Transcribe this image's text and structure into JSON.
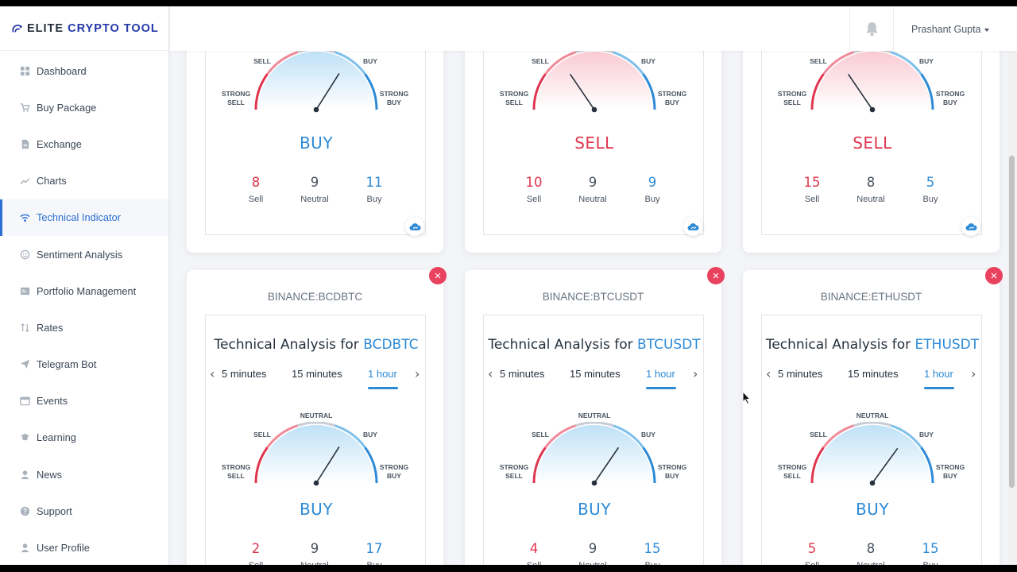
{
  "brand": {
    "prefix": "ELITE",
    "accent": "CRYPTO TOOL"
  },
  "sidebar": {
    "items": [
      {
        "label": "Dashboard",
        "icon": "dashboard-icon"
      },
      {
        "label": "Buy Package",
        "icon": "cart-icon"
      },
      {
        "label": "Exchange",
        "icon": "document-icon"
      },
      {
        "label": "Charts",
        "icon": "chart-line-icon"
      },
      {
        "label": "Technical Indicator",
        "icon": "wifi-icon",
        "active": true
      },
      {
        "label": "Sentiment Analysis",
        "icon": "smiley-icon"
      },
      {
        "label": "Portfolio Management",
        "icon": "portfolio-icon"
      },
      {
        "label": "Rates",
        "icon": "sort-arrows-icon"
      },
      {
        "label": "Telegram Bot",
        "icon": "paper-plane-icon"
      },
      {
        "label": "Events",
        "icon": "calendar-icon"
      },
      {
        "label": "Learning",
        "icon": "graduation-cap-icon"
      },
      {
        "label": "News",
        "icon": "user-icon"
      },
      {
        "label": "Support",
        "icon": "question-circle-icon"
      },
      {
        "label": "User Profile",
        "icon": "user-icon"
      }
    ]
  },
  "header": {
    "user_name": "Prashant Gupta"
  },
  "gauge_labels": {
    "strong_sell_1": "STRONG",
    "strong_sell_2": "SELL",
    "sell": "SELL",
    "neutral": "NEUTRAL",
    "buy": "BUY",
    "strong_buy_1": "STRONG",
    "strong_buy_2": "BUY"
  },
  "count_labels": {
    "sell": "Sell",
    "neutral": "Neutral",
    "buy": "Buy"
  },
  "tabs": {
    "t1": "5 minutes",
    "t2": "15 minutes",
    "t3": "1 hour"
  },
  "title_prefix": "Technical Analysis for",
  "top_cards": [
    {
      "verdict": "BUY",
      "sell": "8",
      "neutral": "9",
      "buy": "11",
      "needle_value": 0.68
    },
    {
      "verdict": "SELL",
      "sell": "10",
      "neutral": "9",
      "buy": "9",
      "needle_value": 0.31
    },
    {
      "verdict": "SELL",
      "sell": "15",
      "neutral": "8",
      "buy": "5",
      "needle_value": 0.31
    }
  ],
  "bottom_cards": [
    {
      "exchange_symbol": "BINANCE:BCDBTC",
      "symbol": "BCDBTC",
      "verdict": "BUY",
      "sell": "2",
      "neutral": "9",
      "buy": "17",
      "needle_value": 0.68
    },
    {
      "exchange_symbol": "BINANCE:BTCUSDT",
      "symbol": "BTCUSDT",
      "verdict": "BUY",
      "sell": "4",
      "neutral": "9",
      "buy": "15",
      "needle_value": 0.69
    },
    {
      "exchange_symbol": "BINANCE:ETHUSDT",
      "symbol": "ETHUSDT",
      "verdict": "BUY",
      "sell": "5",
      "neutral": "8",
      "buy": "15",
      "needle_value": 0.7
    }
  ],
  "colors": {
    "buy": "#2d8ad6",
    "sell": "#e0354e",
    "close": "#e8425e",
    "brand_accent": "#2438a8"
  }
}
